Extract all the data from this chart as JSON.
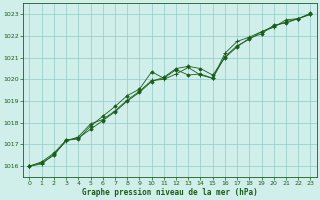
{
  "title": "Graphe pression niveau de la mer (hPa)",
  "bg_color": "#d0eeea",
  "grid_color": "#90ccc8",
  "line_color": "#1a5e1a",
  "marker_color": "#1a5e1a",
  "xlim": [
    -0.5,
    23.5
  ],
  "ylim": [
    1015.5,
    1023.5
  ],
  "yticks": [
    1016,
    1017,
    1018,
    1019,
    1020,
    1021,
    1022,
    1023
  ],
  "xticks": [
    0,
    1,
    2,
    3,
    4,
    5,
    6,
    7,
    8,
    9,
    10,
    11,
    12,
    13,
    14,
    15,
    16,
    17,
    18,
    19,
    20,
    21,
    22,
    23
  ],
  "series1_x": [
    0,
    1,
    2,
    3,
    4,
    5,
    6,
    7,
    8,
    9,
    10,
    11,
    12,
    13,
    14,
    15,
    16,
    17,
    18,
    19,
    20,
    21,
    22,
    23
  ],
  "series1_y": [
    1016.0,
    1016.15,
    1016.5,
    1017.2,
    1017.25,
    1017.85,
    1018.3,
    1018.75,
    1019.25,
    1019.55,
    1020.35,
    1020.05,
    1020.45,
    1020.2,
    1020.25,
    1020.05,
    1021.05,
    1021.55,
    1021.85,
    1022.2,
    1022.45,
    1022.65,
    1022.8,
    1023.0
  ],
  "series2_x": [
    0,
    1,
    2,
    3,
    4,
    5,
    6,
    7,
    8,
    9,
    10,
    11,
    12,
    13,
    14,
    15,
    16,
    17,
    18,
    19,
    20,
    21,
    22,
    23
  ],
  "series2_y": [
    1016.0,
    1016.1,
    1016.55,
    1017.15,
    1017.35,
    1017.95,
    1018.15,
    1018.55,
    1019.05,
    1019.45,
    1019.95,
    1020.0,
    1020.25,
    1020.55,
    1020.2,
    1020.05,
    1021.2,
    1021.75,
    1021.95,
    1022.2,
    1022.4,
    1022.75,
    1022.8,
    1023.0
  ],
  "series3_x": [
    0,
    1,
    2,
    3,
    4,
    5,
    6,
    7,
    8,
    9,
    10,
    11,
    12,
    13,
    14,
    15,
    16,
    17,
    18,
    19,
    20,
    21,
    22,
    23
  ],
  "series3_y": [
    1016.0,
    1016.2,
    1016.6,
    1017.2,
    1017.3,
    1017.7,
    1018.1,
    1018.5,
    1019.0,
    1019.4,
    1019.9,
    1020.1,
    1020.5,
    1020.6,
    1020.5,
    1020.2,
    1021.0,
    1021.5,
    1021.9,
    1022.1,
    1022.5,
    1022.6,
    1022.8,
    1023.05
  ]
}
